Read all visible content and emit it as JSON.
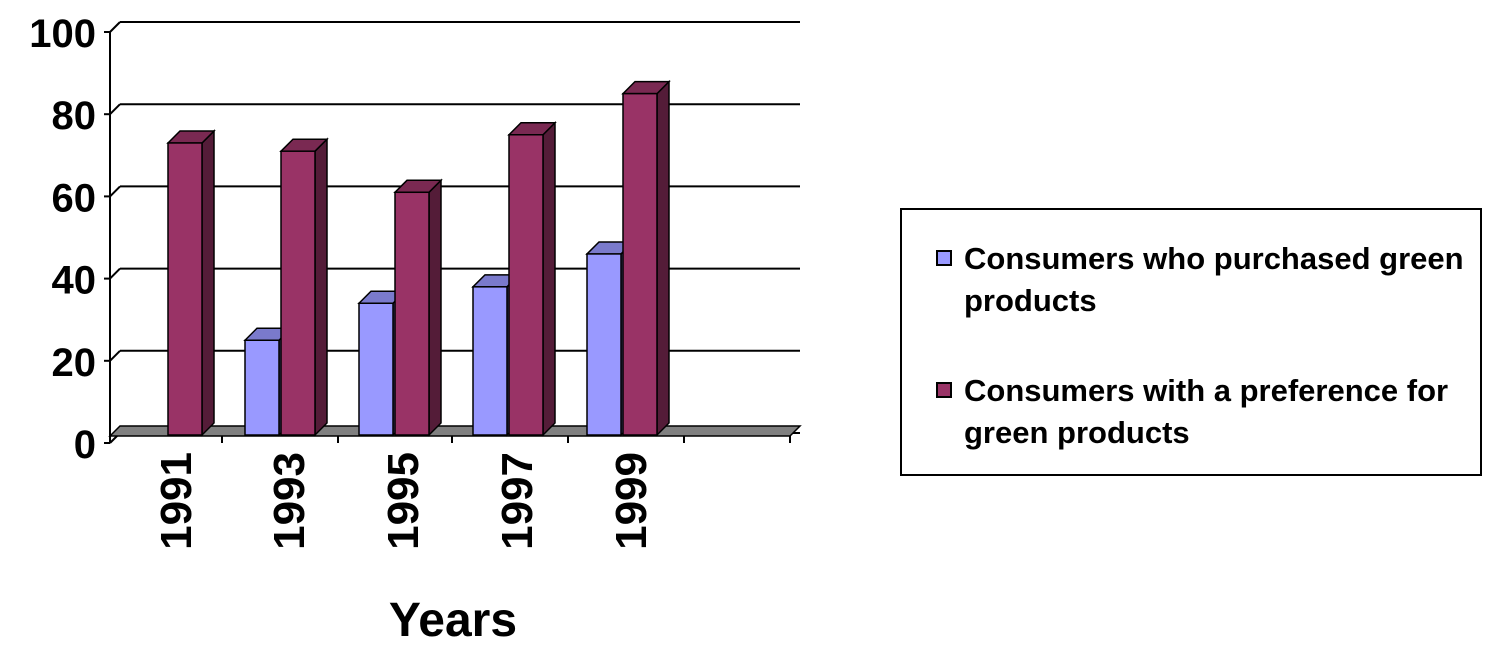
{
  "chart_data": {
    "type": "bar",
    "categories": [
      "1991",
      "1993",
      "1995",
      "1997",
      "1999"
    ],
    "series": [
      {
        "name": "Consumers who purchased green products",
        "values": [
          null,
          25,
          34,
          38,
          46
        ],
        "color": "#9999ff"
      },
      {
        "name": "Consumers with a preference for green products",
        "values": [
          73,
          71,
          61,
          75,
          85
        ],
        "color": "#993366"
      }
    ],
    "xlabel": "Years",
    "ylabel": "",
    "ylim": [
      0,
      100
    ],
    "yticks": [
      "0",
      "20",
      "40",
      "60",
      "80",
      "100"
    ],
    "grid": true,
    "legend_position": "right",
    "three_d": true
  }
}
